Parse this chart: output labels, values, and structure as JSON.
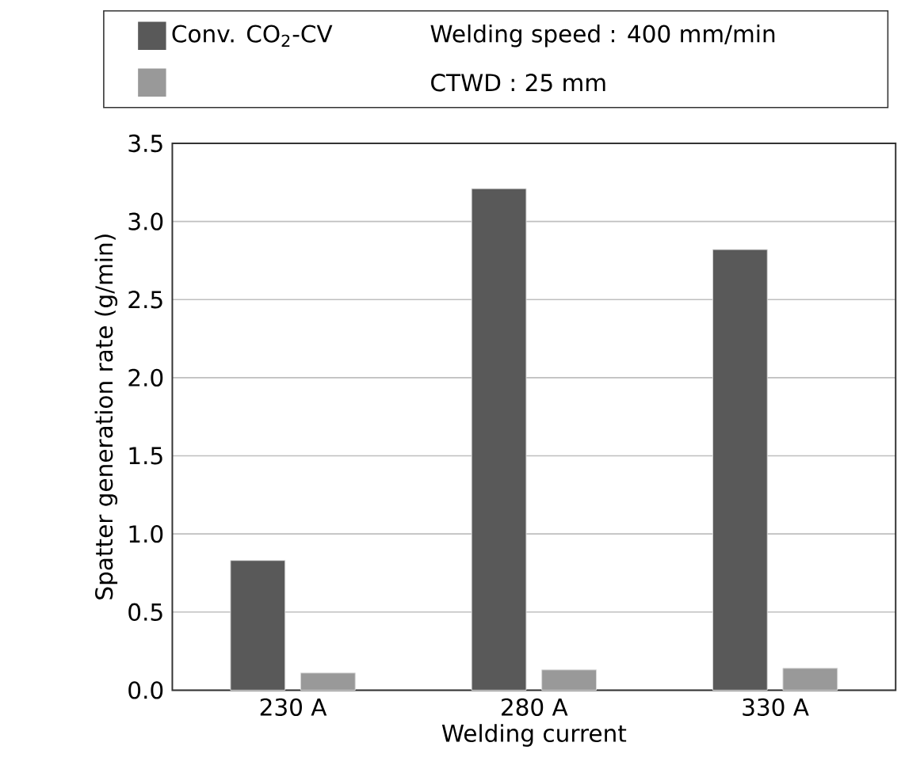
{
  "chart_data": {
    "type": "bar",
    "xlabel": "Welding current",
    "ylabel": "Spatter generation rate (g/min)",
    "categories": [
      "230 A",
      "280 A",
      "330 A"
    ],
    "series": [
      {
        "name": "Conv. CO$_{2}$-CV",
        "color": "#595959",
        "values": [
          0.83,
          3.21,
          2.82
        ]
      },
      {
        "color": "#999999",
        "values": [
          0.11,
          0.13,
          0.14
        ]
      }
    ],
    "ylim": [
      0,
      3.5
    ],
    "yticks": [
      {
        "value": 0,
        "label": "0.0"
      },
      {
        "value": 0.5,
        "label": "0.5"
      },
      {
        "value": 1,
        "label": "1.0"
      },
      {
        "value": 1.5,
        "label": "1.5"
      },
      {
        "value": 2,
        "label": "2.0"
      },
      {
        "value": 2.5,
        "label": "2.5"
      },
      {
        "value": 3,
        "label": "3.0"
      },
      {
        "value": 3.5,
        "label": "3.5"
      }
    ],
    "grid": "y",
    "legend": "top",
    "annotations": [
      "Welding speed : 400 mm/min",
      "CTWD : 25 mm"
    ]
  }
}
